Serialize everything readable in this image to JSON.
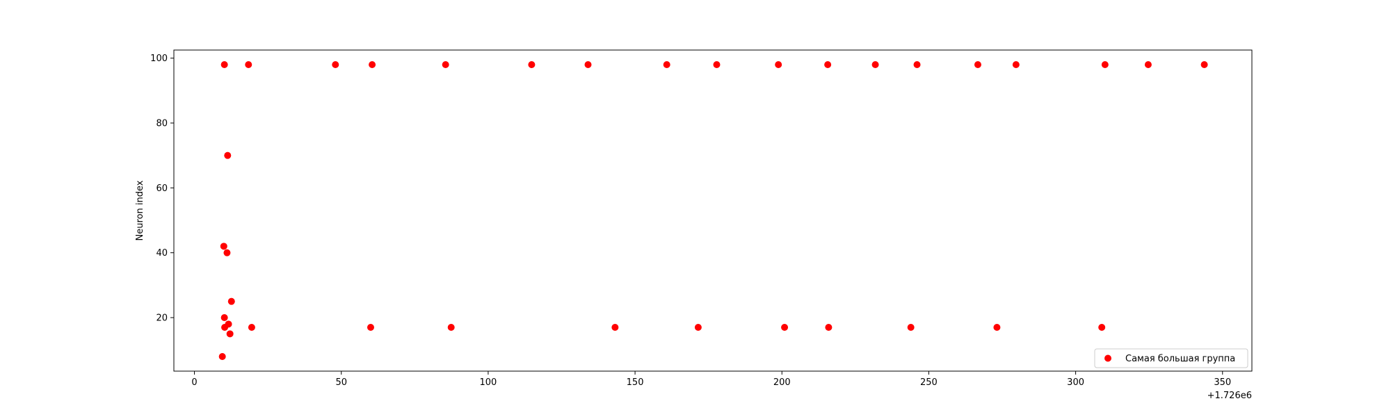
{
  "chart_data": {
    "type": "scatter",
    "title": "",
    "xlabel": "",
    "ylabel": "Neuron index",
    "x_offset_label": "+1.726e6",
    "xlim": [
      -7,
      360
    ],
    "ylim": [
      3.5,
      102.5
    ],
    "xticks": [
      0,
      50,
      100,
      150,
      200,
      250,
      300,
      350
    ],
    "yticks": [
      20,
      40,
      60,
      80,
      100
    ],
    "xtick_labels": [
      "0",
      "50",
      "100",
      "150",
      "200",
      "250",
      "300",
      "350"
    ],
    "ytick_labels": [
      "20",
      "40",
      "60",
      "80",
      "100"
    ],
    "grid": false,
    "legend_position": "lower-right",
    "series": [
      {
        "name": "Самая большая группа",
        "color": "#ff0000",
        "marker": "circle",
        "points": [
          {
            "x": 10.2,
            "y": 98
          },
          {
            "x": 18.4,
            "y": 98
          },
          {
            "x": 48.0,
            "y": 98
          },
          {
            "x": 60.5,
            "y": 98
          },
          {
            "x": 85.5,
            "y": 98
          },
          {
            "x": 114.8,
            "y": 98
          },
          {
            "x": 134.0,
            "y": 98
          },
          {
            "x": 160.8,
            "y": 98
          },
          {
            "x": 177.8,
            "y": 98
          },
          {
            "x": 198.8,
            "y": 98
          },
          {
            "x": 215.6,
            "y": 98
          },
          {
            "x": 231.8,
            "y": 98
          },
          {
            "x": 246.0,
            "y": 98
          },
          {
            "x": 266.7,
            "y": 98
          },
          {
            "x": 279.7,
            "y": 98
          },
          {
            "x": 310.0,
            "y": 98
          },
          {
            "x": 324.7,
            "y": 98
          },
          {
            "x": 343.8,
            "y": 98
          },
          {
            "x": 11.3,
            "y": 70
          },
          {
            "x": 10.0,
            "y": 42
          },
          {
            "x": 11.1,
            "y": 40
          },
          {
            "x": 12.6,
            "y": 25
          },
          {
            "x": 10.2,
            "y": 20
          },
          {
            "x": 11.6,
            "y": 18
          },
          {
            "x": 10.3,
            "y": 17
          },
          {
            "x": 12.1,
            "y": 15
          },
          {
            "x": 9.5,
            "y": 8
          },
          {
            "x": 19.5,
            "y": 17
          },
          {
            "x": 60.0,
            "y": 17
          },
          {
            "x": 87.4,
            "y": 17
          },
          {
            "x": 143.2,
            "y": 17
          },
          {
            "x": 171.5,
            "y": 17
          },
          {
            "x": 200.9,
            "y": 17
          },
          {
            "x": 215.9,
            "y": 17
          },
          {
            "x": 243.9,
            "y": 17
          },
          {
            "x": 273.2,
            "y": 17
          },
          {
            "x": 308.9,
            "y": 17
          }
        ]
      }
    ]
  }
}
